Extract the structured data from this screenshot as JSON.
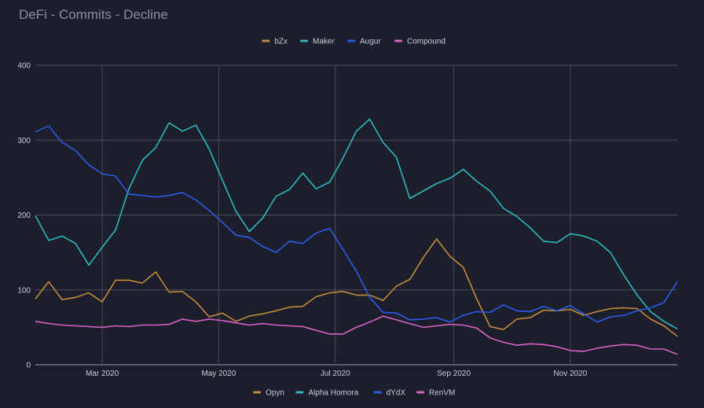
{
  "chart_data": {
    "type": "line",
    "title": "DeFi - Commits - Decline",
    "xlabel": "",
    "ylabel": "",
    "ylim": [
      0,
      400
    ],
    "y_ticks": [
      0,
      100,
      200,
      300,
      400
    ],
    "x_start": "2020-01-26",
    "x_end": "2020-12-27",
    "x_ticks": [
      {
        "date": "2020-03-01",
        "label": "Mar 2020"
      },
      {
        "date": "2020-05-01",
        "label": "May 2020"
      },
      {
        "date": "2020-07-01",
        "label": "Jul 2020"
      },
      {
        "date": "2020-09-01",
        "label": "Sep 2020"
      },
      {
        "date": "2020-11-01",
        "label": "Nov 2020"
      }
    ],
    "x": [
      "2020-01-26",
      "2020-02-02",
      "2020-02-09",
      "2020-02-16",
      "2020-02-23",
      "2020-03-01",
      "2020-03-08",
      "2020-03-15",
      "2020-03-22",
      "2020-03-29",
      "2020-04-05",
      "2020-04-12",
      "2020-04-19",
      "2020-04-26",
      "2020-05-03",
      "2020-05-10",
      "2020-05-17",
      "2020-05-24",
      "2020-05-31",
      "2020-06-07",
      "2020-06-14",
      "2020-06-21",
      "2020-06-28",
      "2020-07-05",
      "2020-07-12",
      "2020-07-19",
      "2020-07-26",
      "2020-08-02",
      "2020-08-09",
      "2020-08-16",
      "2020-08-23",
      "2020-08-30",
      "2020-09-06",
      "2020-09-13",
      "2020-09-20",
      "2020-09-27",
      "2020-10-04",
      "2020-10-11",
      "2020-10-18",
      "2020-10-25",
      "2020-11-01",
      "2020-11-08",
      "2020-11-15",
      "2020-11-22",
      "2020-11-29",
      "2020-12-06",
      "2020-12-13",
      "2020-12-20",
      "2020-12-27"
    ],
    "legend_top": [
      {
        "name": "bZx",
        "color": "#c28a3a"
      },
      {
        "name": "Maker",
        "color": "#2bb8bf"
      },
      {
        "name": "Augur",
        "color": "#2b5ce8"
      },
      {
        "name": "Compound",
        "color": "#d660c4"
      }
    ],
    "legend_bottom": [
      {
        "name": "Opyn",
        "color": "#c28a3a"
      },
      {
        "name": "Alpha Homora",
        "color": "#2bb8bf"
      },
      {
        "name": "dYdX",
        "color": "#2b5ce8"
      },
      {
        "name": "RenVM",
        "color": "#d660c4"
      }
    ],
    "series": [
      {
        "name": "Opyn",
        "color": "#c28a3a",
        "values": [
          88,
          111,
          87,
          90,
          96,
          84,
          113,
          113,
          109,
          124,
          97,
          98,
          84,
          64,
          69,
          58,
          65,
          68,
          72,
          77,
          78,
          91,
          96,
          98,
          93,
          93,
          86,
          105,
          114,
          143,
          168,
          145,
          130,
          88,
          51,
          47,
          61,
          63,
          73,
          72,
          74,
          66,
          71,
          75,
          76,
          75,
          61,
          52,
          38
        ]
      },
      {
        "name": "Alpha Homora",
        "color": "#2bb8bf",
        "values": [
          199,
          166,
          172,
          162,
          133,
          157,
          180,
          235,
          273,
          290,
          323,
          312,
          320,
          288,
          246,
          205,
          178,
          196,
          225,
          234,
          256,
          235,
          244,
          276,
          312,
          328,
          297,
          277,
          222,
          232,
          242,
          249,
          261,
          245,
          232,
          209,
          198,
          183,
          165,
          163,
          175,
          172,
          165,
          150,
          120,
          93,
          71,
          58,
          48
        ]
      },
      {
        "name": "dYdX",
        "color": "#2b5ce8",
        "values": [
          311,
          319,
          297,
          286,
          267,
          255,
          252,
          228,
          226,
          224,
          226,
          230,
          220,
          206,
          190,
          173,
          170,
          158,
          150,
          165,
          162,
          176,
          182,
          154,
          125,
          90,
          70,
          69,
          60,
          61,
          63,
          57,
          66,
          71,
          70,
          80,
          72,
          71,
          78,
          72,
          79,
          68,
          57,
          64,
          66,
          72,
          76,
          83,
          111
        ]
      },
      {
        "name": "RenVM",
        "color": "#d660c4",
        "values": [
          58,
          55,
          53,
          52,
          51,
          50,
          52,
          51,
          53,
          53,
          54,
          61,
          58,
          61,
          59,
          56,
          53,
          55,
          53,
          52,
          51,
          46,
          41,
          41,
          50,
          57,
          65,
          60,
          55,
          50,
          52,
          54,
          53,
          49,
          36,
          30,
          26,
          28,
          27,
          24,
          19,
          18,
          22,
          25,
          27,
          26,
          21,
          21,
          14
        ]
      }
    ]
  }
}
